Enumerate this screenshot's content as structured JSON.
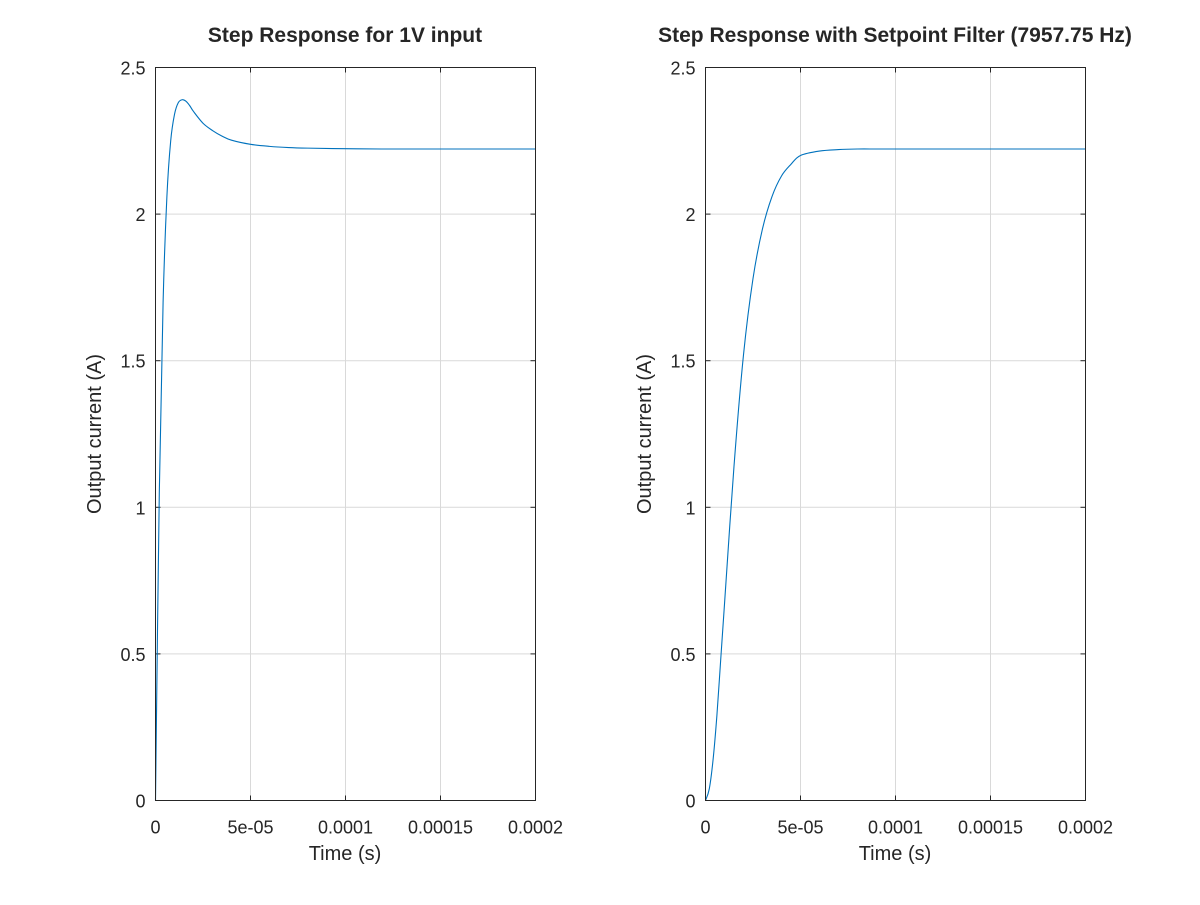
{
  "chart_data": [
    {
      "type": "line",
      "title": "Step Response for 1V input",
      "xlabel": "Time (s)",
      "ylabel": "Output current (A)",
      "xlim": [
        0,
        0.0002
      ],
      "ylim": [
        0,
        2.5
      ],
      "xticks": [
        0,
        5e-05,
        0.0001,
        0.00015,
        0.0002
      ],
      "xtick_labels": [
        "0",
        "5e-05",
        "0.0001",
        "0.00015",
        "0.0002"
      ],
      "yticks": [
        0,
        0.5,
        1,
        1.5,
        2,
        2.5
      ],
      "ytick_labels": [
        "0",
        "0.5",
        "1",
        "1.5",
        "2",
        "2.5"
      ],
      "grid": true,
      "series": [
        {
          "color": "#0072bd",
          "x": [
            0,
            2e-06,
            4e-06,
            6e-06,
            8e-06,
            1e-05,
            1.2e-05,
            1.4e-05,
            1.6e-05,
            1.8e-05,
            2e-05,
            2.5e-05,
            3e-05,
            3.5e-05,
            4e-05,
            5e-05,
            6e-05,
            7e-05,
            8e-05,
            0.0001,
            0.00012,
            0.00015,
            0.0002
          ],
          "y": [
            0,
            1.05,
            1.7,
            2.06,
            2.25,
            2.34,
            2.38,
            2.39,
            2.385,
            2.37,
            2.35,
            2.31,
            2.285,
            2.266,
            2.252,
            2.238,
            2.231,
            2.227,
            2.225,
            2.223,
            2.222,
            2.222,
            2.222
          ]
        }
      ]
    },
    {
      "type": "line",
      "title": "Step Response with Setpoint Filter (7957.75 Hz)",
      "xlabel": "Time (s)",
      "ylabel": "Output current (A)",
      "xlim": [
        0,
        0.0002
      ],
      "ylim": [
        0,
        2.5
      ],
      "xticks": [
        0,
        5e-05,
        0.0001,
        0.00015,
        0.0002
      ],
      "xtick_labels": [
        "0",
        "5e-05",
        "0.0001",
        "0.00015",
        "0.0002"
      ],
      "yticks": [
        0,
        0.5,
        1,
        1.5,
        2,
        2.5
      ],
      "ytick_labels": [
        "0",
        "0.5",
        "1",
        "1.5",
        "2",
        "2.5"
      ],
      "grid": true,
      "series": [
        {
          "color": "#0072bd",
          "x": [
            0,
            2e-06,
            4e-06,
            6e-06,
            8e-06,
            1e-05,
            1.5e-05,
            2e-05,
            2.5e-05,
            3e-05,
            3.5e-05,
            4e-05,
            4.5e-05,
            5e-05,
            6e-05,
            7e-05,
            8e-05,
            9e-05,
            0.0001,
            0.00012,
            0.00015,
            0.0002
          ],
          "y": [
            0,
            0.04,
            0.14,
            0.29,
            0.48,
            0.67,
            1.14,
            1.52,
            1.78,
            1.95,
            2.06,
            2.13,
            2.17,
            2.2,
            2.215,
            2.22,
            2.222,
            2.222,
            2.222,
            2.222,
            2.222,
            2.222
          ]
        }
      ]
    }
  ]
}
